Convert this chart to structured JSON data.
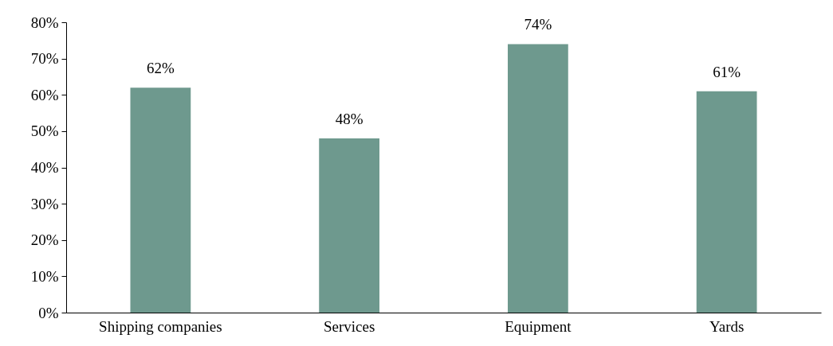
{
  "chart_data": {
    "type": "bar",
    "categories": [
      "Shipping companies",
      "Services",
      "Equipment",
      "Yards"
    ],
    "values": [
      62,
      48,
      74,
      61
    ],
    "value_labels": [
      "62%",
      "48%",
      "74%",
      "61%"
    ],
    "color": "#6e998e",
    "ylim": [
      0,
      80
    ],
    "yticks": [
      {
        "value": 0,
        "label": "0%"
      },
      {
        "value": 10,
        "label": "10%"
      },
      {
        "value": 20,
        "label": "20%"
      },
      {
        "value": 30,
        "label": "30%"
      },
      {
        "value": 40,
        "label": "40%"
      },
      {
        "value": 50,
        "label": "50%"
      },
      {
        "value": 60,
        "label": "60%"
      },
      {
        "value": 70,
        "label": "70%"
      },
      {
        "value": 80,
        "label": "80%"
      }
    ],
    "grid": false
  }
}
